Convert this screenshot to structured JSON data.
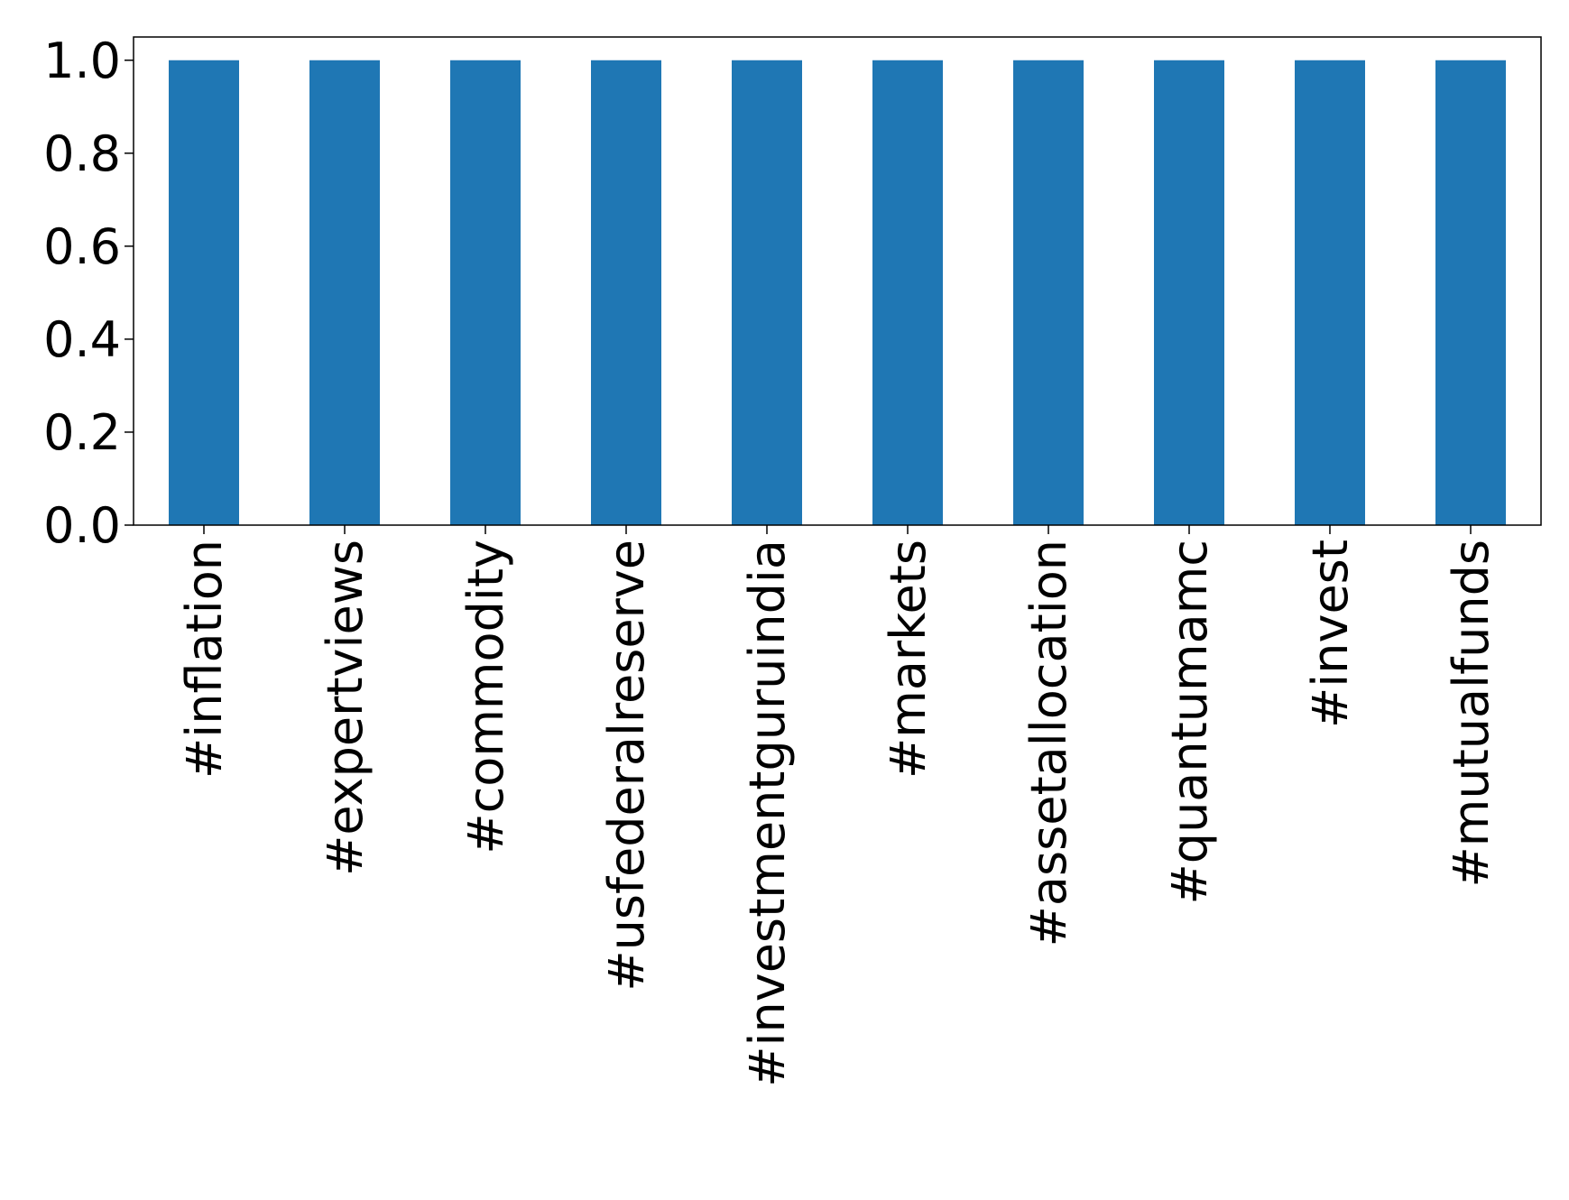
{
  "chart_data": {
    "type": "bar",
    "categories": [
      "#inflation",
      "#expertviews",
      "#commodity",
      "#usfederalreserve",
      "#investmentguruindia",
      "#markets",
      "#assetallocation",
      "#quantumamc",
      "#invest",
      "#mutualfunds"
    ],
    "values": [
      1,
      1,
      1,
      1,
      1,
      1,
      1,
      1,
      1,
      1
    ],
    "color": "#1f77b4",
    "ylim": [
      0,
      1.05
    ],
    "yticks": [
      {
        "value": 0,
        "label": "0.0"
      },
      {
        "value": 0.2,
        "label": "0.2"
      },
      {
        "value": 0.4,
        "label": "0.4"
      },
      {
        "value": 0.6,
        "label": "0.6"
      },
      {
        "value": 0.8,
        "label": "0.8"
      },
      {
        "value": 1,
        "label": "1.0"
      }
    ],
    "grid": false
  }
}
